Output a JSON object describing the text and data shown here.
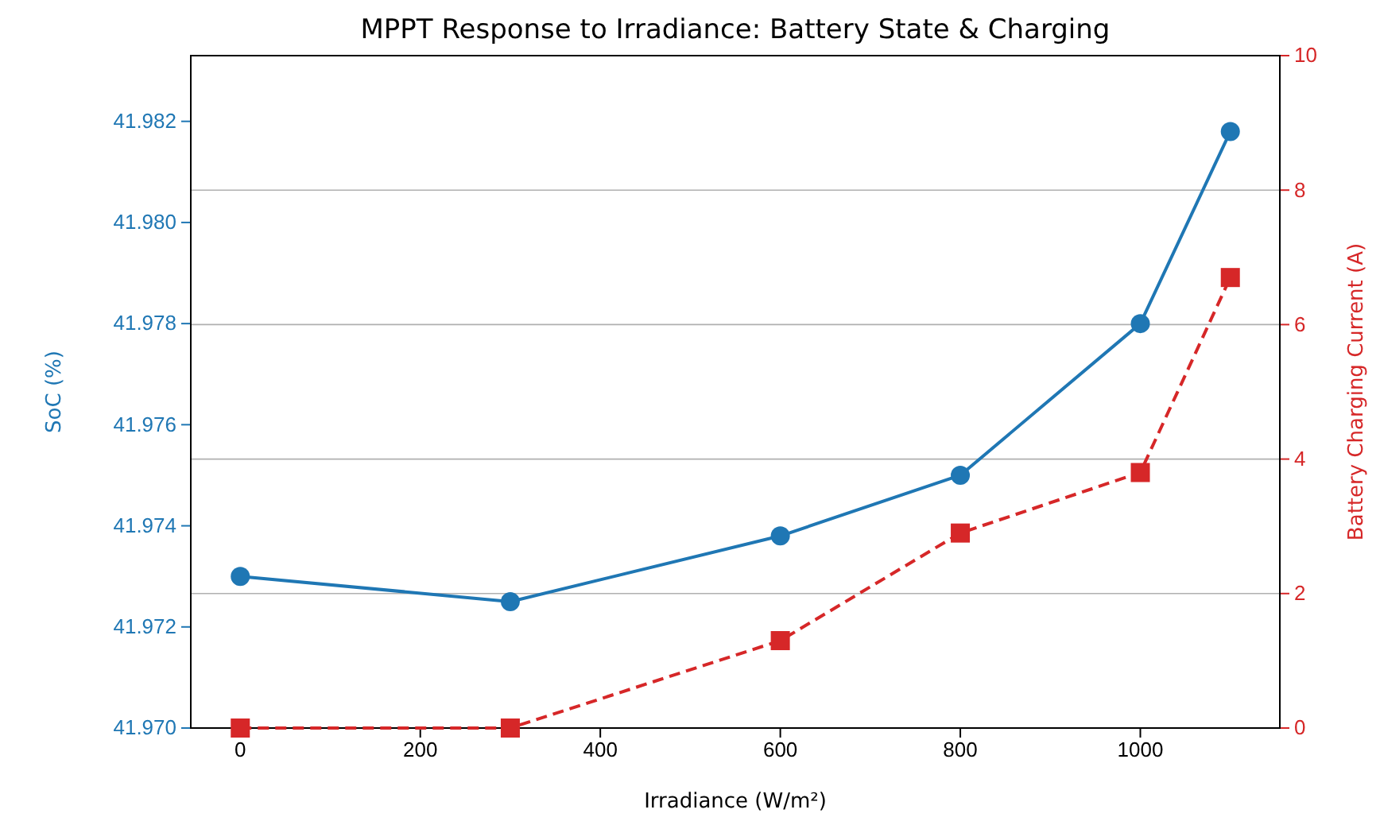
{
  "chart_data": {
    "type": "line",
    "title": "MPPT Response to Irradiance: Battery State & Charging",
    "xlabel": "Irradiance (W/m²)",
    "ylabel": "SoC (%)",
    "y2label": "Battery Charging Current (A)",
    "x": [
      0,
      300,
      600,
      800,
      1000,
      1100
    ],
    "xlim": [
      -55,
      1155
    ],
    "xticks": [
      0,
      200,
      400,
      600,
      800,
      1000
    ],
    "ylim": [
      41.97,
      41.9833
    ],
    "yticks": [
      {
        "value": 41.97,
        "label": "41.970"
      },
      {
        "value": 41.972,
        "label": "41.972"
      },
      {
        "value": 41.974,
        "label": "41.974"
      },
      {
        "value": 41.976,
        "label": "41.976"
      },
      {
        "value": 41.978,
        "label": "41.978"
      },
      {
        "value": 41.98,
        "label": "41.980"
      },
      {
        "value": 41.982,
        "label": "41.982"
      }
    ],
    "y2lim": [
      0,
      10
    ],
    "y2ticks": [
      0,
      2,
      4,
      6,
      8,
      10
    ],
    "grid": "y2",
    "series": [
      {
        "color": "#1f77b4",
        "marker": "circle",
        "line_style": "solid",
        "values": [
          41.973,
          41.9725,
          41.9738,
          41.975,
          41.978,
          41.9818
        ]
      },
      {
        "color": "#d62728",
        "marker": "square",
        "line_style": "dashed",
        "axis": "y2",
        "values": [
          0,
          0,
          1.3,
          2.9,
          3.8,
          6.7
        ]
      }
    ]
  }
}
